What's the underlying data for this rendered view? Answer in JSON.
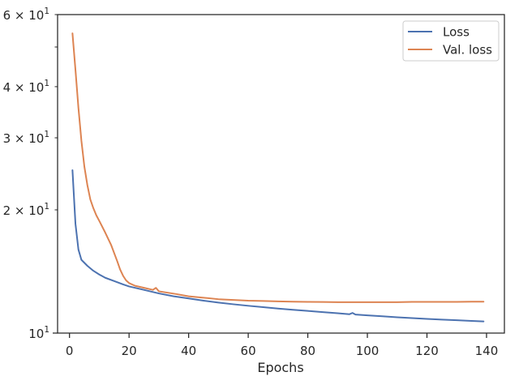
{
  "chart_data": {
    "type": "line",
    "title": "",
    "xlabel": "Epochs",
    "ylabel": "",
    "y_scale": "log",
    "xlim": [
      -4,
      146
    ],
    "ylim": [
      10,
      60
    ],
    "grid": false,
    "legend_position": "top-right",
    "x_ticks": [
      0,
      20,
      40,
      60,
      80,
      100,
      120,
      140
    ],
    "y_major_ticks": [
      10
    ],
    "y_minor_ticks": [
      20,
      30,
      40,
      50,
      60
    ],
    "y_tick_labels": [
      {
        "value": 10,
        "base": "10",
        "exp": "1"
      },
      {
        "value": 20,
        "mant": "2",
        "base": "10",
        "exp": "1"
      },
      {
        "value": 30,
        "mant": "3",
        "base": "10",
        "exp": "1"
      },
      {
        "value": 40,
        "mant": "4",
        "base": "10",
        "exp": "1"
      },
      {
        "value": 60,
        "mant": "6",
        "base": "10",
        "exp": "1"
      }
    ],
    "series": [
      {
        "name": "Loss",
        "color": "#4c72b0",
        "points": [
          [
            1,
            25.0
          ],
          [
            2,
            18.5
          ],
          [
            3,
            16.0
          ],
          [
            4,
            15.1
          ],
          [
            6,
            14.6
          ],
          [
            8,
            14.2
          ],
          [
            10,
            13.9
          ],
          [
            12,
            13.65
          ],
          [
            15,
            13.4
          ],
          [
            18,
            13.15
          ],
          [
            20,
            13.0
          ],
          [
            25,
            12.75
          ],
          [
            30,
            12.5
          ],
          [
            35,
            12.3
          ],
          [
            40,
            12.15
          ],
          [
            45,
            12.0
          ],
          [
            50,
            11.87
          ],
          [
            55,
            11.76
          ],
          [
            60,
            11.66
          ],
          [
            65,
            11.57
          ],
          [
            70,
            11.48
          ],
          [
            75,
            11.4
          ],
          [
            80,
            11.33
          ],
          [
            85,
            11.25
          ],
          [
            90,
            11.18
          ],
          [
            94,
            11.12
          ],
          [
            95,
            11.2
          ],
          [
            96,
            11.1
          ],
          [
            100,
            11.05
          ],
          [
            105,
            10.99
          ],
          [
            110,
            10.93
          ],
          [
            115,
            10.88
          ],
          [
            120,
            10.83
          ],
          [
            125,
            10.79
          ],
          [
            130,
            10.75
          ],
          [
            135,
            10.71
          ],
          [
            139,
            10.68
          ]
        ]
      },
      {
        "name": "Val. loss",
        "color": "#dd8452",
        "points": [
          [
            1,
            54.0
          ],
          [
            2,
            44.0
          ],
          [
            3,
            35.5
          ],
          [
            4,
            29.5
          ],
          [
            5,
            25.5
          ],
          [
            6,
            23.0
          ],
          [
            7,
            21.2
          ],
          [
            8,
            20.2
          ],
          [
            9,
            19.4
          ],
          [
            10,
            18.8
          ],
          [
            12,
            17.6
          ],
          [
            14,
            16.4
          ],
          [
            16,
            15.0
          ],
          [
            17,
            14.3
          ],
          [
            18,
            13.8
          ],
          [
            19,
            13.45
          ],
          [
            20,
            13.25
          ],
          [
            22,
            13.05
          ],
          [
            25,
            12.9
          ],
          [
            28,
            12.75
          ],
          [
            29,
            12.9
          ],
          [
            30,
            12.65
          ],
          [
            33,
            12.55
          ],
          [
            36,
            12.45
          ],
          [
            40,
            12.3
          ],
          [
            45,
            12.2
          ],
          [
            50,
            12.1
          ],
          [
            55,
            12.05
          ],
          [
            60,
            12.0
          ],
          [
            65,
            11.98
          ],
          [
            70,
            11.95
          ],
          [
            75,
            11.93
          ],
          [
            80,
            11.92
          ],
          [
            85,
            11.91
          ],
          [
            90,
            11.9
          ],
          [
            95,
            11.9
          ],
          [
            100,
            11.9
          ],
          [
            105,
            11.9
          ],
          [
            110,
            11.9
          ],
          [
            115,
            11.92
          ],
          [
            120,
            11.92
          ],
          [
            125,
            11.92
          ],
          [
            130,
            11.92
          ],
          [
            135,
            11.93
          ],
          [
            139,
            11.93
          ]
        ]
      }
    ]
  }
}
